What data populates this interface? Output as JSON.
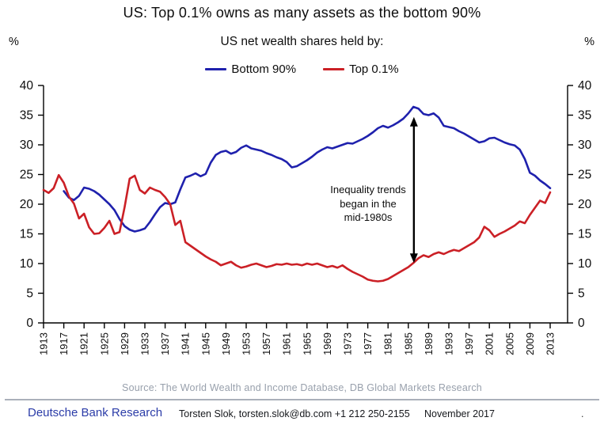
{
  "header": {
    "title": "US: Top 0.1% owns as many assets as the bottom 90%",
    "subtitle": "US net wealth shares held by:",
    "unit_left": "%",
    "unit_right": "%"
  },
  "chart_data": {
    "type": "line",
    "title": "US: Top 0.1% owns as many assets as the bottom 90%",
    "subtitle": "US net wealth shares held by:",
    "grid": false,
    "legend_position": "top-center",
    "ylim": [
      0,
      40
    ],
    "ytick_step": 5,
    "x_start": 1913,
    "x_end": 2013,
    "x_ticks": [
      1913,
      1917,
      1921,
      1925,
      1929,
      1933,
      1937,
      1941,
      1945,
      1949,
      1953,
      1957,
      1961,
      1965,
      1969,
      1973,
      1977,
      1981,
      1985,
      1989,
      1993,
      1997,
      2001,
      2005,
      2009,
      2013
    ],
    "axis_color": "#000000",
    "series": [
      {
        "name": "Bottom 90%",
        "color": "#1f21ad",
        "start_year": 1913,
        "values": [
          null,
          null,
          null,
          null,
          22.2,
          21.1,
          20.7,
          21.4,
          22.8,
          22.6,
          22.2,
          21.6,
          20.8,
          20.0,
          19.0,
          17.5,
          16.3,
          15.7,
          15.4,
          15.6,
          15.9,
          17.0,
          18.3,
          19.5,
          20.2,
          20.0,
          20.3,
          22.5,
          24.5,
          24.8,
          25.2,
          24.7,
          25.1,
          27.0,
          28.3,
          28.8,
          29.0,
          28.5,
          28.8,
          29.5,
          29.9,
          29.4,
          29.2,
          29.0,
          28.6,
          28.3,
          27.9,
          27.6,
          27.1,
          26.2,
          26.4,
          26.9,
          27.4,
          28.0,
          28.7,
          29.2,
          29.6,
          29.4,
          29.7,
          30.0,
          30.3,
          30.2,
          30.6,
          31.0,
          31.5,
          32.1,
          32.8,
          33.2,
          32.9,
          33.3,
          33.8,
          34.4,
          35.3,
          36.4,
          36.1,
          35.2,
          35.0,
          35.3,
          34.6,
          33.2,
          33.0,
          32.8,
          32.3,
          31.9,
          31.4,
          30.9,
          30.4,
          30.6,
          31.1,
          31.2,
          30.8,
          30.4,
          30.1,
          29.9,
          29.2,
          27.6,
          25.3,
          24.8,
          24.0,
          23.4,
          22.7
        ]
      },
      {
        "name": "Top 0.1%",
        "color": "#cb2026",
        "start_year": 1913,
        "values": [
          22.4,
          21.9,
          22.7,
          24.9,
          23.6,
          21.3,
          20.1,
          17.6,
          18.4,
          16.1,
          15.0,
          15.1,
          16.0,
          17.2,
          15.0,
          15.3,
          19.5,
          24.3,
          24.8,
          22.4,
          21.8,
          22.8,
          22.4,
          22.1,
          21.2,
          20.0,
          16.5,
          17.2,
          13.6,
          13.0,
          12.4,
          11.8,
          11.2,
          10.7,
          10.3,
          9.7,
          10.0,
          10.3,
          9.7,
          9.3,
          9.5,
          9.8,
          10.0,
          9.7,
          9.4,
          9.6,
          9.9,
          9.8,
          10.0,
          9.8,
          9.9,
          9.7,
          10.0,
          9.8,
          10.0,
          9.7,
          9.4,
          9.6,
          9.3,
          9.7,
          9.1,
          8.6,
          8.2,
          7.8,
          7.3,
          7.1,
          7.0,
          7.1,
          7.4,
          7.9,
          8.4,
          8.9,
          9.4,
          10.1,
          10.9,
          11.4,
          11.1,
          11.6,
          11.9,
          11.6,
          12.0,
          12.3,
          12.1,
          12.6,
          13.1,
          13.6,
          14.4,
          16.2,
          15.6,
          14.5,
          15.0,
          15.4,
          15.9,
          16.4,
          17.1,
          16.8,
          18.2,
          19.4,
          20.6,
          20.2,
          22.0
        ]
      }
    ],
    "annotation": {
      "lines": [
        "Inequality trends",
        "began in the",
        "mid-1980s"
      ],
      "arrow": {
        "year": 1986.1,
        "from_value": 34.7,
        "to_value": 10.1
      }
    }
  },
  "footer": {
    "source": "Source: The World Wealth and Income Database, DB Global Markets Research",
    "brand": "Deutsche Bank Research",
    "contact": "Torsten Slok, torsten.slok@db.com  +1 212 250-2155",
    "date": "November 2017",
    "trailing_dot": "."
  }
}
